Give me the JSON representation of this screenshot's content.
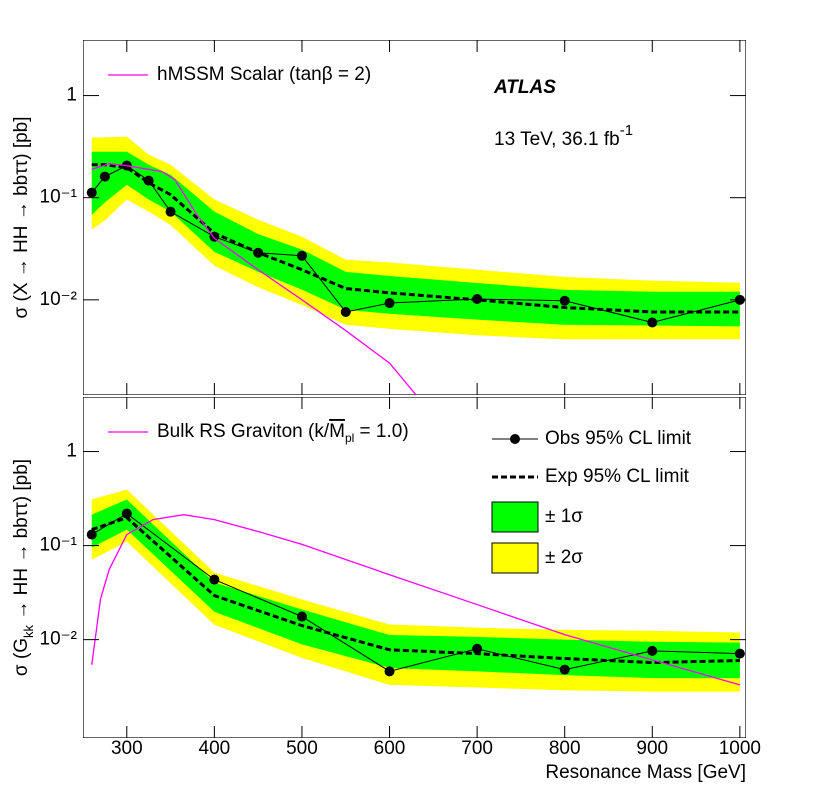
{
  "chart_data": [
    {
      "type": "line",
      "log_y": true,
      "xlim": [
        250,
        1007
      ],
      "ylim": [
        0.00117,
        3.5
      ],
      "xticks": [
        300,
        400,
        500,
        600,
        700,
        800,
        900,
        1000
      ],
      "yticks": [
        {
          "value": 1,
          "label": "1"
        },
        {
          "value": 0.1,
          "label": "10⁻¹"
        },
        {
          "value": 0.01,
          "label": "10⁻²"
        }
      ],
      "ylabel": "σ (X → HH → bbττ) [pb]",
      "experiment": "ATLAS",
      "energy_label": "13 TeV, 36.1 fb",
      "energy_label_exponent": "-1",
      "x": [
        260,
        275,
        300,
        325,
        350,
        400,
        450,
        500,
        550,
        600,
        700,
        800,
        900,
        1000
      ],
      "series": [
        {
          "role": "band2",
          "color": "#ffff00",
          "upper": [
            0.388,
            0.39,
            0.396,
            0.264,
            0.21,
            0.096,
            0.0608,
            0.0415,
            0.0247,
            0.0232,
            0.0197,
            0.0168,
            0.0154,
            0.0147
          ],
          "lower": [
            0.049,
            0.06,
            0.096,
            0.073,
            0.054,
            0.0216,
            0.0133,
            0.0089,
            0.0057,
            0.0052,
            0.0045,
            0.0041,
            0.0041,
            0.0041
          ]
        },
        {
          "role": "band1",
          "color": "#00ff00",
          "upper": [
            0.282,
            0.282,
            0.282,
            0.21,
            0.168,
            0.073,
            0.044,
            0.031,
            0.0188,
            0.0171,
            0.0146,
            0.0125,
            0.012,
            0.012
          ],
          "lower": [
            0.068,
            0.09,
            0.134,
            0.096,
            0.073,
            0.0295,
            0.0188,
            0.0126,
            0.008,
            0.0073,
            0.0064,
            0.0057,
            0.0056,
            0.0055
          ]
        },
        {
          "role": "expected",
          "color": "#000000",
          "values": [
            0.21,
            0.21,
            0.197,
            0.14,
            0.107,
            0.045,
            0.029,
            0.0197,
            0.0129,
            0.0117,
            0.01,
            0.0084,
            0.0076,
            0.0076
          ]
        },
        {
          "role": "observed",
          "color": "#000000",
          "values": [
            0.112,
            0.161,
            0.206,
            0.147,
            0.073,
            0.0415,
            0.0289,
            0.027,
            0.0076,
            0.0093,
            0.0102,
            0.0098,
            0.006,
            0.01
          ]
        },
        {
          "role": "theory",
          "name": "hMSSM Scalar (tanβ = 2)",
          "color": "#ff00ff",
          "x": [
            260,
            280,
            300,
            340,
            355,
            380,
            400,
            450,
            500,
            550,
            600,
            630
          ],
          "values": [
            0.19,
            0.215,
            0.206,
            0.18,
            0.15,
            0.068,
            0.04,
            0.0197,
            0.01,
            0.005,
            0.0024,
            0.00118
          ]
        }
      ]
    },
    {
      "type": "line",
      "log_y": true,
      "xlim": [
        250,
        1007
      ],
      "ylim": [
        0.0009,
        3.8
      ],
      "xticks": [
        300,
        400,
        500,
        600,
        700,
        800,
        900,
        1000
      ],
      "yticks": [
        {
          "value": 1,
          "label": "1"
        },
        {
          "value": 0.1,
          "label": "10⁻¹"
        },
        {
          "value": 0.01,
          "label": "10⁻²"
        }
      ],
      "ylabel_parts": [
        "σ (G",
        "kk",
        " → HH → bbττ) [pb]"
      ],
      "xlabel": "Resonance Mass [GeV]",
      "x": [
        260,
        300,
        400,
        500,
        600,
        700,
        800,
        900,
        1000
      ],
      "series": [
        {
          "role": "band2",
          "name": "± 2σ",
          "color": "#ffff00",
          "upper": [
            0.309,
            0.394,
            0.0516,
            0.0267,
            0.0145,
            0.0134,
            0.0127,
            0.0124,
            0.0119
          ],
          "lower": [
            0.071,
            0.11,
            0.0144,
            0.0064,
            0.0033,
            0.0031,
            0.0029,
            0.0028,
            0.0028
          ]
        },
        {
          "role": "band1",
          "name": "± 1σ",
          "color": "#00ff00",
          "upper": [
            0.213,
            0.309,
            0.0405,
            0.0209,
            0.0112,
            0.0107,
            0.01,
            0.0095,
            0.0093
          ],
          "lower": [
            0.095,
            0.148,
            0.0198,
            0.0089,
            0.005,
            0.0046,
            0.0042,
            0.0039,
            0.0039
          ]
        },
        {
          "role": "expected",
          "name": "Exp 95% CL limit",
          "color": "#000000",
          "values": [
            0.148,
            0.198,
            0.0294,
            0.0141,
            0.0078,
            0.0071,
            0.0063,
            0.0057,
            0.006
          ]
        },
        {
          "role": "observed",
          "name": "Obs 95% CL limit",
          "color": "#000000",
          "values": [
            0.131,
            0.219,
            0.0435,
            0.0176,
            0.0046,
            0.008,
            0.0048,
            0.0076,
            0.0071
          ]
        },
        {
          "role": "theory",
          "name_parts": [
            "Bulk RS Graviton (k/",
            "M",
            "pl",
            " = 1.0)"
          ],
          "color": "#ff00ff",
          "x": [
            260,
            270,
            280,
            300,
            330,
            365,
            400,
            450,
            500,
            600,
            700,
            800,
            900,
            1000
          ],
          "values": [
            0.0054,
            0.027,
            0.056,
            0.131,
            0.189,
            0.213,
            0.189,
            0.141,
            0.103,
            0.049,
            0.0236,
            0.0113,
            0.0061,
            0.0033
          ]
        }
      ]
    }
  ]
}
